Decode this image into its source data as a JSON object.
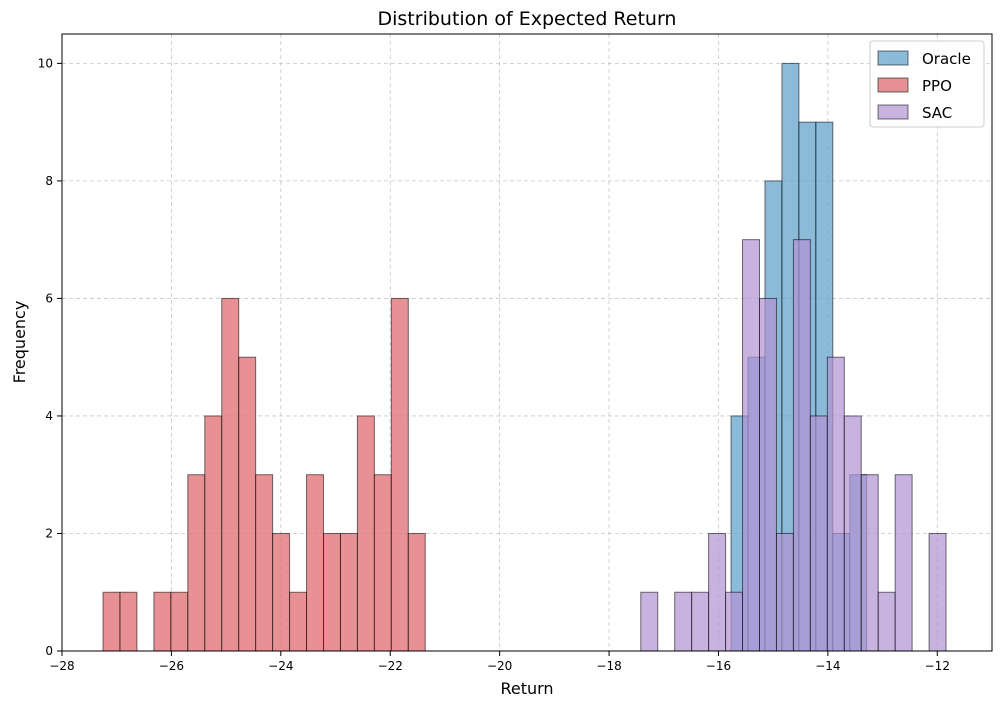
{
  "chart_data": {
    "type": "histogram",
    "title": "Distribution of Expected Return",
    "xlabel": "Return",
    "ylabel": "Frequency",
    "xlim": [
      -28,
      -11
    ],
    "ylim": [
      0,
      10.5
    ],
    "xticks": [
      -28,
      -26,
      -24,
      -22,
      -20,
      -18,
      -16,
      -14,
      -12
    ],
    "yticks": [
      0,
      2,
      4,
      6,
      8,
      10
    ],
    "grid": true,
    "legend_position": "top-right",
    "series": [
      {
        "name": "PPO",
        "color": "#e06c70",
        "alpha": 0.75,
        "bin_width": 0.31,
        "bins": [
          {
            "x0": -27.25,
            "count": 1
          },
          {
            "x0": -26.94,
            "count": 1
          },
          {
            "x0": -26.32,
            "count": 1
          },
          {
            "x0": -26.01,
            "count": 1
          },
          {
            "x0": -25.7,
            "count": 3
          },
          {
            "x0": -25.39,
            "count": 4
          },
          {
            "x0": -25.08,
            "count": 6
          },
          {
            "x0": -24.77,
            "count": 5
          },
          {
            "x0": -24.46,
            "count": 3
          },
          {
            "x0": -24.15,
            "count": 2
          },
          {
            "x0": -23.84,
            "count": 1
          },
          {
            "x0": -23.53,
            "count": 3
          },
          {
            "x0": -23.22,
            "count": 2
          },
          {
            "x0": -22.91,
            "count": 2
          },
          {
            "x0": -22.6,
            "count": 4
          },
          {
            "x0": -22.29,
            "count": 3
          },
          {
            "x0": -21.98,
            "count": 6
          },
          {
            "x0": -21.67,
            "count": 2
          }
        ]
      },
      {
        "name": "Oracle",
        "color": "#5b9ecb",
        "alpha": 0.7,
        "bin_width": 0.31,
        "bins": [
          {
            "x0": -15.77,
            "count": 4
          },
          {
            "x0": -15.46,
            "count": 5
          },
          {
            "x0": -15.15,
            "count": 8
          },
          {
            "x0": -14.84,
            "count": 10
          },
          {
            "x0": -14.53,
            "count": 9
          },
          {
            "x0": -14.22,
            "count": 9
          },
          {
            "x0": -13.91,
            "count": 2
          },
          {
            "x0": -13.6,
            "count": 3
          }
        ]
      },
      {
        "name": "SAC",
        "color": "#b191d3",
        "alpha": 0.7,
        "bin_width": 0.31,
        "bins": [
          {
            "x0": -17.42,
            "count": 1
          },
          {
            "x0": -16.8,
            "count": 1
          },
          {
            "x0": -16.49,
            "count": 1
          },
          {
            "x0": -16.18,
            "count": 2
          },
          {
            "x0": -15.87,
            "count": 1
          },
          {
            "x0": -15.56,
            "count": 7
          },
          {
            "x0": -15.25,
            "count": 6
          },
          {
            "x0": -14.94,
            "count": 2
          },
          {
            "x0": -14.63,
            "count": 7
          },
          {
            "x0": -14.32,
            "count": 4
          },
          {
            "x0": -14.01,
            "count": 5
          },
          {
            "x0": -13.7,
            "count": 4
          },
          {
            "x0": -13.39,
            "count": 3
          },
          {
            "x0": -13.08,
            "count": 1
          },
          {
            "x0": -12.77,
            "count": 3
          },
          {
            "x0": -12.15,
            "count": 2
          }
        ]
      }
    ],
    "legend_order": [
      "Oracle",
      "PPO",
      "SAC"
    ]
  }
}
